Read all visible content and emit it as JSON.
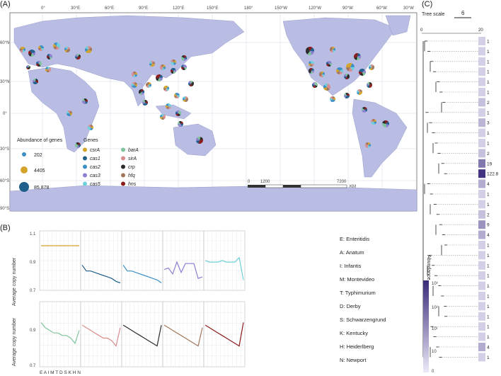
{
  "panels": {
    "a_label": "(A)",
    "b_label": "(B)",
    "c_label": "(C)"
  },
  "map": {
    "lon_ticks": [
      "0°",
      "30°E",
      "60°E",
      "90°E",
      "120°E",
      "150°E",
      "180°",
      "150°W",
      "120°W",
      "90°W",
      "60°W",
      "30°W"
    ],
    "lat_ticks": [
      "60°N",
      "30°N",
      "0°",
      "30°S",
      "60°S",
      "90°S"
    ],
    "abundance_title": "Abundance of genes",
    "abundance_values": [
      "202",
      "4405",
      "85,878"
    ],
    "genes_title": "Genes",
    "genes_col1": [
      "csrA",
      "cas1",
      "cas2",
      "cas3",
      "cas5"
    ],
    "genes_col2": [
      "barA",
      "sirA",
      "crp",
      "hfq",
      "hns"
    ],
    "gene_colors": [
      "#d4a32a",
      "#1f5f8b",
      "#3b8fc4",
      "#8c7fd0",
      "#6fd0dc",
      "#7fc49a",
      "#d98c8c",
      "#2a2a2a",
      "#a0765a",
      "#8b1a1a"
    ],
    "scale_labels": [
      "0",
      "1200",
      "7200"
    ],
    "scale_unit": "KM"
  },
  "chart_b": {
    "ylabel": "Average copy number",
    "top_ticks": [
      "1.1",
      "0.9",
      "0.7"
    ],
    "bottom_ticks": [
      "0.9",
      "0.7"
    ],
    "x_labels": "E A I M T D S K H N"
  },
  "chart_data": [
    {
      "type": "line",
      "ylabel": "Average copy number",
      "categories": [
        "E",
        "A",
        "I",
        "M",
        "T",
        "D",
        "S",
        "K",
        "H",
        "N"
      ],
      "ylim": [
        0.7,
        1.1
      ],
      "series": [
        {
          "name": "csrA",
          "values": [
            1.0,
            1.0,
            1.0,
            1.0,
            1.0,
            1.0,
            1.0,
            1.0,
            1.0,
            1.0
          ]
        },
        {
          "name": "cas1",
          "values": [
            0.87,
            0.83,
            0.83,
            0.82,
            0.81,
            0.8,
            0.79,
            0.78,
            0.76,
            0.75
          ]
        },
        {
          "name": "cas2",
          "values": [
            0.87,
            0.83,
            0.83,
            0.82,
            0.81,
            0.8,
            0.79,
            0.78,
            0.77,
            0.75
          ]
        },
        {
          "name": "cas3",
          "values": [
            0.84,
            0.85,
            0.81,
            0.89,
            0.82,
            0.88,
            0.88,
            0.88,
            0.78,
            0.79
          ]
        },
        {
          "name": "cas5",
          "values": [
            0.9,
            0.89,
            0.89,
            0.89,
            0.9,
            0.89,
            0.89,
            0.89,
            0.92,
            0.77
          ]
        }
      ]
    },
    {
      "type": "line",
      "ylabel": "Average copy number",
      "categories": [
        "E",
        "A",
        "I",
        "M",
        "T",
        "D",
        "S",
        "K",
        "H",
        "N"
      ],
      "ylim": [
        0.7,
        0.95
      ],
      "series": [
        {
          "name": "barA",
          "values": [
            0.87,
            0.85,
            0.84,
            0.83,
            0.83,
            0.82,
            0.82,
            0.81,
            0.79,
            0.84
          ]
        },
        {
          "name": "sirA",
          "values": [
            0.86,
            0.85,
            0.84,
            0.83,
            0.82,
            0.81,
            0.81,
            0.8,
            0.78,
            0.85
          ]
        },
        {
          "name": "crp",
          "values": [
            0.86,
            0.85,
            0.84,
            0.83,
            0.82,
            0.81,
            0.8,
            0.79,
            0.78,
            0.86
          ]
        },
        {
          "name": "hfq",
          "values": [
            0.86,
            0.85,
            0.84,
            0.83,
            0.82,
            0.81,
            0.8,
            0.79,
            0.78,
            0.85
          ]
        },
        {
          "name": "hns",
          "values": [
            0.86,
            0.85,
            0.84,
            0.83,
            0.82,
            0.81,
            0.8,
            0.79,
            0.78,
            0.87
          ]
        }
      ]
    }
  ],
  "serotypes": [
    "E: Enteritidis",
    "A: Anatum",
    "I: Infantis",
    "M: Montevideo",
    "T: Typhimurium",
    "D: Derby",
    "S: Schwarzengrund",
    "K: Kentucky",
    "H: Heiderlberg",
    "N: Newport"
  ],
  "tree": {
    "scale_title": "Tree scale",
    "scale_value": "6",
    "axis_ticks": [
      "0",
      "20"
    ],
    "abundance_values": [
      "1",
      "1",
      "1",
      "1",
      "1",
      "1",
      "2",
      "1",
      "3",
      "1",
      "1",
      "2",
      "19",
      "122.8",
      "4",
      "1",
      "1",
      "2",
      "9",
      "4",
      "1",
      "1",
      "1",
      "1",
      "1",
      "1",
      "1",
      "1",
      "1",
      "1",
      "4",
      "1"
    ],
    "colorbar_title": "Abundance",
    "colorbar_ticks": [
      "10³",
      "10²",
      "10¹",
      "10",
      "0"
    ]
  }
}
